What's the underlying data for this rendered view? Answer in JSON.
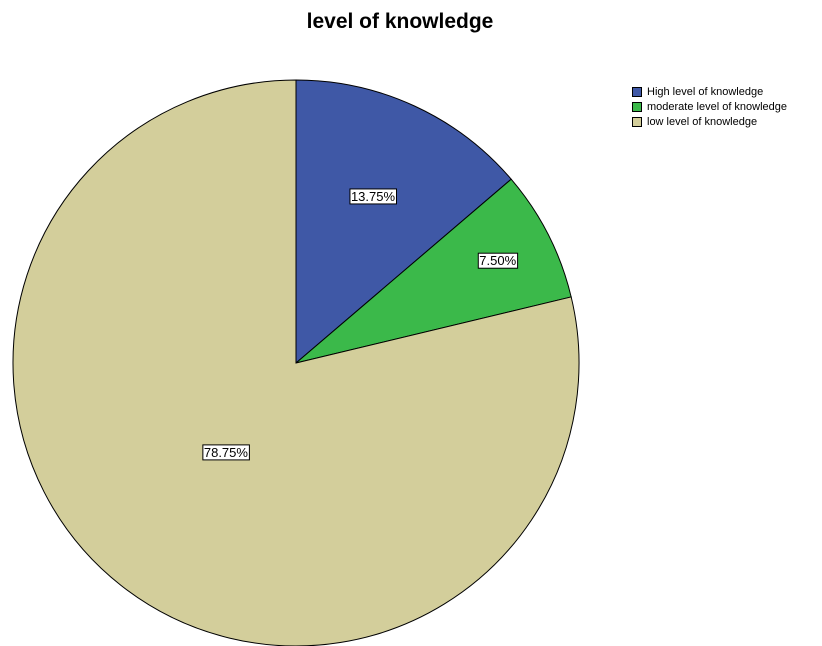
{
  "chart_data": {
    "type": "pie",
    "title": "level of knowledge",
    "slices": [
      {
        "label": "High level of knowledge",
        "value": 13.75,
        "value_label": "13.75%",
        "color": "#3f58a6"
      },
      {
        "label": "moderate level of knowledge",
        "value": 7.5,
        "value_label": "7.50%",
        "color": "#3bb94a"
      },
      {
        "label": "low level of knowledge",
        "value": 78.75,
        "value_label": "78.75%",
        "color": "#d3ce9b"
      }
    ],
    "start_angle": "12 o'clock",
    "direction": "clockwise",
    "legend_position": "top-right"
  }
}
